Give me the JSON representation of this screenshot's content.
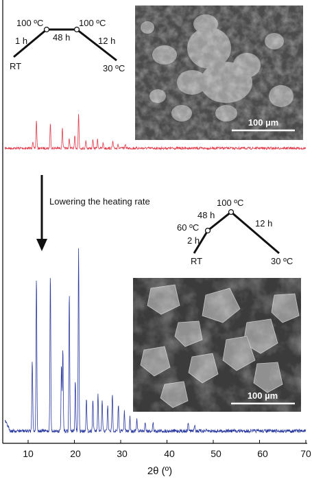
{
  "chart_data": {
    "type": "line",
    "xlabel": "2θ (º)",
    "xlim": [
      5,
      70
    ],
    "x_ticks": [
      "10",
      "20",
      "30",
      "40",
      "50",
      "60",
      "70"
    ],
    "series": [
      {
        "color": "#e03a4a",
        "baseline": 0.2,
        "peaks": [
          {
            "x": 11.0,
            "h": 0.12
          },
          {
            "x": 11.8,
            "h": 0.5
          },
          {
            "x": 14.8,
            "h": 0.45
          },
          {
            "x": 17.4,
            "h": 0.38
          },
          {
            "x": 18.9,
            "h": 0.18
          },
          {
            "x": 20.1,
            "h": 0.22
          },
          {
            "x": 20.9,
            "h": 0.62
          },
          {
            "x": 22.5,
            "h": 0.14
          },
          {
            "x": 24.0,
            "h": 0.14
          },
          {
            "x": 25.0,
            "h": 0.16
          },
          {
            "x": 26.2,
            "h": 0.1
          },
          {
            "x": 28.3,
            "h": 0.12
          },
          {
            "x": 29.4,
            "h": 0.08
          },
          {
            "x": 31.0,
            "h": 0.08
          }
        ]
      },
      {
        "color": "#2a3aa0",
        "baseline": 0.2,
        "peaks": [
          {
            "x": 10.9,
            "h": 1.05
          },
          {
            "x": 11.8,
            "h": 2.25
          },
          {
            "x": 14.8,
            "h": 2.3
          },
          {
            "x": 17.2,
            "h": 0.98
          },
          {
            "x": 17.5,
            "h": 1.2
          },
          {
            "x": 18.9,
            "h": 2.0
          },
          {
            "x": 20.2,
            "h": 0.72
          },
          {
            "x": 20.9,
            "h": 2.65
          },
          {
            "x": 22.6,
            "h": 0.48
          },
          {
            "x": 24.0,
            "h": 0.46
          },
          {
            "x": 25.1,
            "h": 0.52
          },
          {
            "x": 26.0,
            "h": 0.45
          },
          {
            "x": 27.2,
            "h": 0.38
          },
          {
            "x": 28.2,
            "h": 0.55
          },
          {
            "x": 29.5,
            "h": 0.38
          },
          {
            "x": 30.8,
            "h": 0.28
          },
          {
            "x": 32.0,
            "h": 0.2
          },
          {
            "x": 33.5,
            "h": 0.16
          },
          {
            "x": 35.3,
            "h": 0.14
          },
          {
            "x": 37.0,
            "h": 0.12
          },
          {
            "x": 44.6,
            "h": 0.12
          },
          {
            "x": 46.0,
            "h": 0.1
          }
        ]
      }
    ],
    "annotations": {
      "arrow_label": "Lowering the heating rate",
      "program1": {
        "rt": "RT",
        "t1": "1 h",
        "temp1": "100 ºC",
        "hold": "48 h",
        "temp2": "100 ºC",
        "t2": "12 h",
        "final": "30 ºC"
      },
      "program2": {
        "rt": "RT",
        "t1": "2 h",
        "temp1": "60 ºC",
        "t2": "48 h",
        "temp2": "100 ºC",
        "t3": "12 h",
        "final": "30 ºC"
      },
      "sem1_scale": "100 µm",
      "sem2_scale": "100 µm"
    }
  }
}
